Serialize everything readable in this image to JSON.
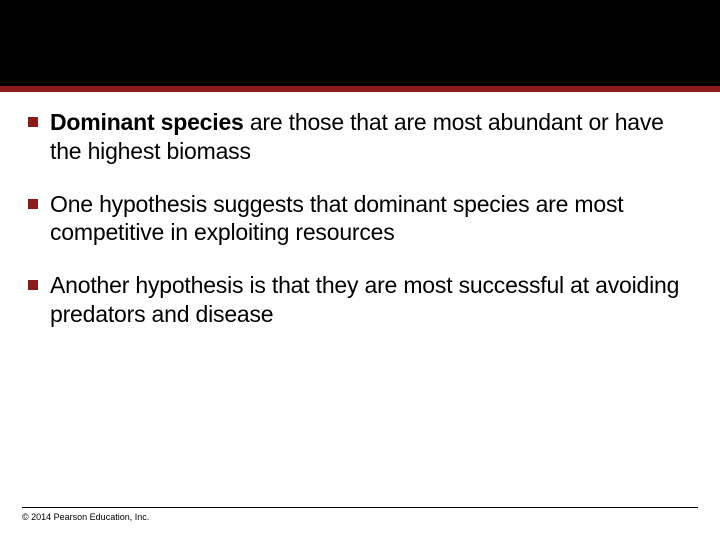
{
  "layout": {
    "header_black_height": 86,
    "header_rule_height": 6,
    "header_rule_color": "#8b1a1a",
    "bullet_color": "#8b1a1a",
    "background_color": "#ffffff",
    "body_fontsize": 23,
    "footer_fontsize": 9
  },
  "bullets": [
    {
      "bold_lead": "Dominant species",
      "rest": " are those that are most abundant or have the highest biomass"
    },
    {
      "bold_lead": "",
      "rest": "One hypothesis suggests that dominant species are most competitive in exploiting resources"
    },
    {
      "bold_lead": "",
      "rest": "Another hypothesis is that they are most successful at avoiding predators and disease"
    }
  ],
  "footer": {
    "copyright": "© 2014 Pearson Education, Inc."
  }
}
